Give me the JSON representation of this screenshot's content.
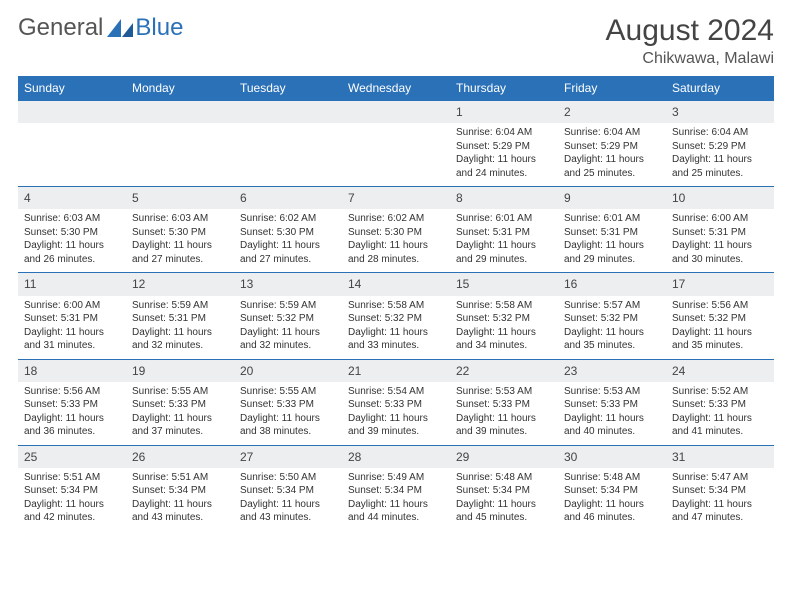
{
  "brand": {
    "part1": "General",
    "part2": "Blue"
  },
  "title": "August 2024",
  "location": "Chikwawa, Malawi",
  "colors": {
    "accent": "#2a71b8",
    "header_text": "#ffffff",
    "daynum_bg": "#eceef0"
  },
  "day_headers": [
    "Sunday",
    "Monday",
    "Tuesday",
    "Wednesday",
    "Thursday",
    "Friday",
    "Saturday"
  ],
  "weeks": [
    {
      "nums": [
        "",
        "",
        "",
        "",
        "1",
        "2",
        "3"
      ],
      "details": [
        null,
        null,
        null,
        null,
        {
          "sunrise": "Sunrise: 6:04 AM",
          "sunset": "Sunset: 5:29 PM",
          "day1": "Daylight: 11 hours",
          "day2": "and 24 minutes."
        },
        {
          "sunrise": "Sunrise: 6:04 AM",
          "sunset": "Sunset: 5:29 PM",
          "day1": "Daylight: 11 hours",
          "day2": "and 25 minutes."
        },
        {
          "sunrise": "Sunrise: 6:04 AM",
          "sunset": "Sunset: 5:29 PM",
          "day1": "Daylight: 11 hours",
          "day2": "and 25 minutes."
        }
      ]
    },
    {
      "nums": [
        "4",
        "5",
        "6",
        "7",
        "8",
        "9",
        "10"
      ],
      "details": [
        {
          "sunrise": "Sunrise: 6:03 AM",
          "sunset": "Sunset: 5:30 PM",
          "day1": "Daylight: 11 hours",
          "day2": "and 26 minutes."
        },
        {
          "sunrise": "Sunrise: 6:03 AM",
          "sunset": "Sunset: 5:30 PM",
          "day1": "Daylight: 11 hours",
          "day2": "and 27 minutes."
        },
        {
          "sunrise": "Sunrise: 6:02 AM",
          "sunset": "Sunset: 5:30 PM",
          "day1": "Daylight: 11 hours",
          "day2": "and 27 minutes."
        },
        {
          "sunrise": "Sunrise: 6:02 AM",
          "sunset": "Sunset: 5:30 PM",
          "day1": "Daylight: 11 hours",
          "day2": "and 28 minutes."
        },
        {
          "sunrise": "Sunrise: 6:01 AM",
          "sunset": "Sunset: 5:31 PM",
          "day1": "Daylight: 11 hours",
          "day2": "and 29 minutes."
        },
        {
          "sunrise": "Sunrise: 6:01 AM",
          "sunset": "Sunset: 5:31 PM",
          "day1": "Daylight: 11 hours",
          "day2": "and 29 minutes."
        },
        {
          "sunrise": "Sunrise: 6:00 AM",
          "sunset": "Sunset: 5:31 PM",
          "day1": "Daylight: 11 hours",
          "day2": "and 30 minutes."
        }
      ]
    },
    {
      "nums": [
        "11",
        "12",
        "13",
        "14",
        "15",
        "16",
        "17"
      ],
      "details": [
        {
          "sunrise": "Sunrise: 6:00 AM",
          "sunset": "Sunset: 5:31 PM",
          "day1": "Daylight: 11 hours",
          "day2": "and 31 minutes."
        },
        {
          "sunrise": "Sunrise: 5:59 AM",
          "sunset": "Sunset: 5:31 PM",
          "day1": "Daylight: 11 hours",
          "day2": "and 32 minutes."
        },
        {
          "sunrise": "Sunrise: 5:59 AM",
          "sunset": "Sunset: 5:32 PM",
          "day1": "Daylight: 11 hours",
          "day2": "and 32 minutes."
        },
        {
          "sunrise": "Sunrise: 5:58 AM",
          "sunset": "Sunset: 5:32 PM",
          "day1": "Daylight: 11 hours",
          "day2": "and 33 minutes."
        },
        {
          "sunrise": "Sunrise: 5:58 AM",
          "sunset": "Sunset: 5:32 PM",
          "day1": "Daylight: 11 hours",
          "day2": "and 34 minutes."
        },
        {
          "sunrise": "Sunrise: 5:57 AM",
          "sunset": "Sunset: 5:32 PM",
          "day1": "Daylight: 11 hours",
          "day2": "and 35 minutes."
        },
        {
          "sunrise": "Sunrise: 5:56 AM",
          "sunset": "Sunset: 5:32 PM",
          "day1": "Daylight: 11 hours",
          "day2": "and 35 minutes."
        }
      ]
    },
    {
      "nums": [
        "18",
        "19",
        "20",
        "21",
        "22",
        "23",
        "24"
      ],
      "details": [
        {
          "sunrise": "Sunrise: 5:56 AM",
          "sunset": "Sunset: 5:33 PM",
          "day1": "Daylight: 11 hours",
          "day2": "and 36 minutes."
        },
        {
          "sunrise": "Sunrise: 5:55 AM",
          "sunset": "Sunset: 5:33 PM",
          "day1": "Daylight: 11 hours",
          "day2": "and 37 minutes."
        },
        {
          "sunrise": "Sunrise: 5:55 AM",
          "sunset": "Sunset: 5:33 PM",
          "day1": "Daylight: 11 hours",
          "day2": "and 38 minutes."
        },
        {
          "sunrise": "Sunrise: 5:54 AM",
          "sunset": "Sunset: 5:33 PM",
          "day1": "Daylight: 11 hours",
          "day2": "and 39 minutes."
        },
        {
          "sunrise": "Sunrise: 5:53 AM",
          "sunset": "Sunset: 5:33 PM",
          "day1": "Daylight: 11 hours",
          "day2": "and 39 minutes."
        },
        {
          "sunrise": "Sunrise: 5:53 AM",
          "sunset": "Sunset: 5:33 PM",
          "day1": "Daylight: 11 hours",
          "day2": "and 40 minutes."
        },
        {
          "sunrise": "Sunrise: 5:52 AM",
          "sunset": "Sunset: 5:33 PM",
          "day1": "Daylight: 11 hours",
          "day2": "and 41 minutes."
        }
      ]
    },
    {
      "nums": [
        "25",
        "26",
        "27",
        "28",
        "29",
        "30",
        "31"
      ],
      "details": [
        {
          "sunrise": "Sunrise: 5:51 AM",
          "sunset": "Sunset: 5:34 PM",
          "day1": "Daylight: 11 hours",
          "day2": "and 42 minutes."
        },
        {
          "sunrise": "Sunrise: 5:51 AM",
          "sunset": "Sunset: 5:34 PM",
          "day1": "Daylight: 11 hours",
          "day2": "and 43 minutes."
        },
        {
          "sunrise": "Sunrise: 5:50 AM",
          "sunset": "Sunset: 5:34 PM",
          "day1": "Daylight: 11 hours",
          "day2": "and 43 minutes."
        },
        {
          "sunrise": "Sunrise: 5:49 AM",
          "sunset": "Sunset: 5:34 PM",
          "day1": "Daylight: 11 hours",
          "day2": "and 44 minutes."
        },
        {
          "sunrise": "Sunrise: 5:48 AM",
          "sunset": "Sunset: 5:34 PM",
          "day1": "Daylight: 11 hours",
          "day2": "and 45 minutes."
        },
        {
          "sunrise": "Sunrise: 5:48 AM",
          "sunset": "Sunset: 5:34 PM",
          "day1": "Daylight: 11 hours",
          "day2": "and 46 minutes."
        },
        {
          "sunrise": "Sunrise: 5:47 AM",
          "sunset": "Sunset: 5:34 PM",
          "day1": "Daylight: 11 hours",
          "day2": "and 47 minutes."
        }
      ]
    }
  ]
}
